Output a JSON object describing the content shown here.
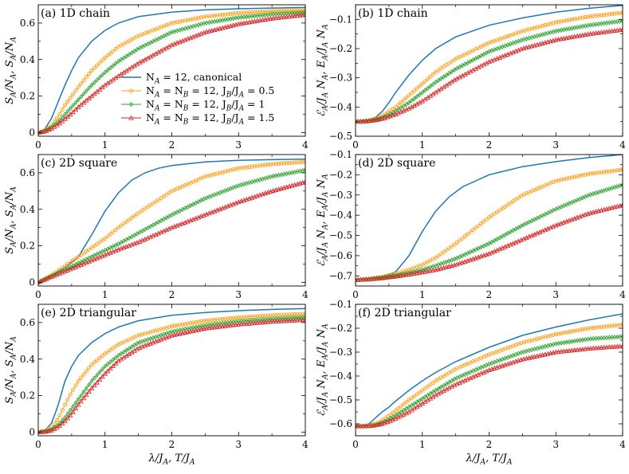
{
  "figure": {
    "xlabel_bottom": "λ/J_A, T/J_A"
  },
  "legend": [
    {
      "label": "N_A = 12, canonical",
      "color": "#1f77b4",
      "marker": "none"
    },
    {
      "label": "N_A = N_B = 12, J_B/J_A = 0.5",
      "color": "#ff9f1a",
      "marker": "circle"
    },
    {
      "label": "N_A = N_B = 12, J_B/J_A = 1",
      "color": "#2ca02c",
      "marker": "diamond"
    },
    {
      "label": "N_A = N_B = 12, J_B/J_A = 1.5",
      "color": "#d62728",
      "marker": "triangle"
    }
  ],
  "chart_data": [
    {
      "type": "line",
      "panel_label": "(a) 1D chain",
      "ylabel": "S_A/N_A, S_A/N_A",
      "xlim": [
        0,
        4
      ],
      "ylim": [
        -0.02,
        0.7
      ],
      "xticks": [
        0,
        1,
        2,
        3,
        4
      ],
      "yticks": [
        0.0,
        0.2,
        0.4,
        0.6
      ],
      "series": [
        {
          "x": [
            0,
            0.1,
            0.2,
            0.3,
            0.4,
            0.5,
            0.6,
            0.8,
            1.0,
            1.2,
            1.5,
            2.0,
            2.5,
            3.0,
            3.5,
            4.0
          ],
          "y": [
            0,
            0.02,
            0.08,
            0.17,
            0.26,
            0.34,
            0.41,
            0.5,
            0.56,
            0.6,
            0.635,
            0.66,
            0.672,
            0.678,
            0.682,
            0.685
          ]
        },
        {
          "x": [
            0,
            0.1,
            0.2,
            0.3,
            0.4,
            0.5,
            0.6,
            0.8,
            1.0,
            1.2,
            1.5,
            2.0,
            2.5,
            3.0,
            3.5,
            4.0
          ],
          "y": [
            0,
            0.01,
            0.04,
            0.09,
            0.15,
            0.2,
            0.25,
            0.34,
            0.41,
            0.47,
            0.53,
            0.6,
            0.635,
            0.655,
            0.665,
            0.672
          ]
        },
        {
          "x": [
            0,
            0.1,
            0.2,
            0.3,
            0.4,
            0.5,
            0.6,
            0.8,
            1.0,
            1.2,
            1.5,
            2.0,
            2.5,
            3.0,
            3.5,
            4.0
          ],
          "y": [
            0,
            0.008,
            0.03,
            0.06,
            0.1,
            0.14,
            0.18,
            0.26,
            0.33,
            0.39,
            0.46,
            0.55,
            0.6,
            0.63,
            0.648,
            0.658
          ]
        },
        {
          "x": [
            0,
            0.1,
            0.2,
            0.3,
            0.4,
            0.5,
            0.6,
            0.8,
            1.0,
            1.2,
            1.5,
            2.0,
            2.5,
            3.0,
            3.5,
            4.0
          ],
          "y": [
            0,
            0.006,
            0.022,
            0.045,
            0.075,
            0.105,
            0.14,
            0.2,
            0.26,
            0.31,
            0.38,
            0.48,
            0.55,
            0.595,
            0.625,
            0.645
          ]
        }
      ]
    },
    {
      "type": "line",
      "panel_label": "(b) 1D chain",
      "ylabel": "ℰ_A/J_A N_A, E_A/J_A N_A",
      "xlim": [
        0,
        4
      ],
      "ylim": [
        -0.5,
        -0.05
      ],
      "xticks": [
        0,
        1,
        2,
        3,
        4
      ],
      "yticks": [
        -0.5,
        -0.4,
        -0.3,
        -0.2,
        -0.1
      ],
      "series": [
        {
          "x": [
            0,
            0.1,
            0.2,
            0.3,
            0.4,
            0.5,
            0.6,
            0.8,
            1.0,
            1.2,
            1.5,
            2.0,
            2.5,
            3.0,
            3.5,
            4.0
          ],
          "y": [
            -0.45,
            -0.449,
            -0.445,
            -0.435,
            -0.415,
            -0.385,
            -0.35,
            -0.29,
            -0.24,
            -0.2,
            -0.16,
            -0.12,
            -0.095,
            -0.075,
            -0.062,
            -0.052
          ]
        },
        {
          "x": [
            0,
            0.1,
            0.2,
            0.3,
            0.4,
            0.5,
            0.6,
            0.8,
            1.0,
            1.2,
            1.5,
            2.0,
            2.5,
            3.0,
            3.5,
            4.0
          ],
          "y": [
            -0.45,
            -0.449,
            -0.446,
            -0.44,
            -0.43,
            -0.415,
            -0.4,
            -0.36,
            -0.32,
            -0.28,
            -0.235,
            -0.18,
            -0.14,
            -0.11,
            -0.09,
            -0.077
          ]
        },
        {
          "x": [
            0,
            0.1,
            0.2,
            0.3,
            0.4,
            0.5,
            0.6,
            0.8,
            1.0,
            1.2,
            1.5,
            2.0,
            2.5,
            3.0,
            3.5,
            4.0
          ],
          "y": [
            -0.45,
            -0.449,
            -0.447,
            -0.443,
            -0.436,
            -0.426,
            -0.414,
            -0.385,
            -0.35,
            -0.315,
            -0.27,
            -0.21,
            -0.17,
            -0.14,
            -0.12,
            -0.105
          ]
        },
        {
          "x": [
            0,
            0.1,
            0.2,
            0.3,
            0.4,
            0.5,
            0.6,
            0.8,
            1.0,
            1.2,
            1.5,
            2.0,
            2.5,
            3.0,
            3.5,
            4.0
          ],
          "y": [
            -0.45,
            -0.45,
            -0.448,
            -0.445,
            -0.44,
            -0.433,
            -0.425,
            -0.405,
            -0.38,
            -0.35,
            -0.305,
            -0.245,
            -0.2,
            -0.17,
            -0.15,
            -0.135
          ]
        }
      ]
    },
    {
      "type": "line",
      "panel_label": "(c) 2D square",
      "ylabel": "S_A/N_A, S_A/N_A",
      "xlim": [
        0,
        4
      ],
      "ylim": [
        -0.02,
        0.7
      ],
      "xticks": [
        0,
        1,
        2,
        3,
        4
      ],
      "yticks": [
        0.0,
        0.2,
        0.4,
        0.6
      ],
      "series": [
        {
          "x": [
            0,
            0.2,
            0.4,
            0.6,
            0.8,
            1.0,
            1.2,
            1.4,
            1.6,
            1.8,
            2.0,
            2.5,
            3.0,
            3.5,
            4.0
          ],
          "y": [
            0,
            0.04,
            0.08,
            0.14,
            0.26,
            0.39,
            0.49,
            0.56,
            0.6,
            0.625,
            0.64,
            0.66,
            0.668,
            0.672,
            0.675
          ]
        },
        {
          "x": [
            0,
            0.2,
            0.4,
            0.6,
            0.8,
            1.0,
            1.2,
            1.5,
            2.0,
            2.5,
            3.0,
            3.5,
            4.0
          ],
          "y": [
            0,
            0.04,
            0.09,
            0.14,
            0.19,
            0.24,
            0.3,
            0.38,
            0.5,
            0.58,
            0.625,
            0.648,
            0.66
          ]
        },
        {
          "x": [
            0,
            0.2,
            0.4,
            0.6,
            0.8,
            1.0,
            1.2,
            1.5,
            2.0,
            2.5,
            3.0,
            3.5,
            4.0
          ],
          "y": [
            0,
            0.035,
            0.07,
            0.105,
            0.14,
            0.175,
            0.21,
            0.27,
            0.37,
            0.46,
            0.53,
            0.58,
            0.615
          ]
        },
        {
          "x": [
            0,
            0.2,
            0.4,
            0.6,
            0.8,
            1.0,
            1.2,
            1.5,
            2.0,
            2.5,
            3.0,
            3.5,
            4.0
          ],
          "y": [
            0,
            0.03,
            0.06,
            0.09,
            0.12,
            0.15,
            0.18,
            0.22,
            0.3,
            0.37,
            0.44,
            0.5,
            0.55
          ]
        }
      ]
    },
    {
      "type": "line",
      "panel_label": "(d) 2D square",
      "ylabel": "ℰ_A/J_A N_A, E_A/J_A N_A",
      "xlim": [
        0,
        4
      ],
      "ylim": [
        -0.75,
        -0.1
      ],
      "xticks": [
        0,
        1,
        2,
        3,
        4
      ],
      "yticks": [
        -0.7,
        -0.6,
        -0.5,
        -0.4,
        -0.3,
        -0.2,
        -0.1
      ],
      "series": [
        {
          "x": [
            0,
            0.2,
            0.4,
            0.6,
            0.8,
            1.0,
            1.2,
            1.4,
            1.6,
            2.0,
            2.5,
            3.0,
            3.5,
            4.0
          ],
          "y": [
            -0.72,
            -0.715,
            -0.705,
            -0.68,
            -0.6,
            -0.48,
            -0.38,
            -0.31,
            -0.26,
            -0.2,
            -0.16,
            -0.135,
            -0.115,
            -0.1
          ]
        },
        {
          "x": [
            0,
            0.2,
            0.4,
            0.6,
            0.8,
            1.0,
            1.2,
            1.5,
            2.0,
            2.5,
            3.0,
            3.5,
            4.0
          ],
          "y": [
            -0.72,
            -0.715,
            -0.705,
            -0.69,
            -0.67,
            -0.645,
            -0.61,
            -0.54,
            -0.41,
            -0.3,
            -0.23,
            -0.195,
            -0.175
          ]
        },
        {
          "x": [
            0,
            0.2,
            0.4,
            0.6,
            0.8,
            1.0,
            1.2,
            1.5,
            2.0,
            2.5,
            3.0,
            3.5,
            4.0
          ],
          "y": [
            -0.72,
            -0.716,
            -0.708,
            -0.698,
            -0.685,
            -0.67,
            -0.65,
            -0.615,
            -0.54,
            -0.45,
            -0.37,
            -0.3,
            -0.25
          ]
        },
        {
          "x": [
            0,
            0.2,
            0.4,
            0.6,
            0.8,
            1.0,
            1.2,
            1.5,
            2.0,
            2.5,
            3.0,
            3.5,
            4.0
          ],
          "y": [
            -0.72,
            -0.717,
            -0.711,
            -0.703,
            -0.693,
            -0.682,
            -0.67,
            -0.645,
            -0.59,
            -0.52,
            -0.45,
            -0.39,
            -0.35
          ]
        }
      ]
    },
    {
      "type": "line",
      "panel_label": "(e) 2D triangular",
      "ylabel": "S_A/N_A, S_A/N_A",
      "xlim": [
        0,
        4
      ],
      "ylim": [
        -0.02,
        0.7
      ],
      "xticks": [
        0,
        1,
        2,
        3,
        4
      ],
      "yticks": [
        0.0,
        0.2,
        0.4,
        0.6
      ],
      "series": [
        {
          "x": [
            0,
            0.1,
            0.2,
            0.3,
            0.4,
            0.5,
            0.6,
            0.8,
            1.0,
            1.2,
            1.5,
            2.0,
            2.5,
            3.0,
            3.5,
            4.0
          ],
          "y": [
            0,
            0.01,
            0.05,
            0.15,
            0.28,
            0.36,
            0.42,
            0.49,
            0.54,
            0.575,
            0.61,
            0.64,
            0.655,
            0.665,
            0.672,
            0.677
          ]
        },
        {
          "x": [
            0,
            0.1,
            0.2,
            0.3,
            0.4,
            0.5,
            0.6,
            0.8,
            1.0,
            1.2,
            1.5,
            2.0,
            2.5,
            3.0,
            3.5,
            4.0
          ],
          "y": [
            0,
            0.005,
            0.025,
            0.075,
            0.15,
            0.22,
            0.28,
            0.37,
            0.43,
            0.48,
            0.53,
            0.58,
            0.61,
            0.628,
            0.64,
            0.648
          ]
        },
        {
          "x": [
            0,
            0.1,
            0.2,
            0.3,
            0.4,
            0.5,
            0.6,
            0.8,
            1.0,
            1.2,
            1.5,
            2.0,
            2.5,
            3.0,
            3.5,
            4.0
          ],
          "y": [
            0,
            0.003,
            0.015,
            0.04,
            0.08,
            0.13,
            0.18,
            0.28,
            0.36,
            0.42,
            0.49,
            0.55,
            0.585,
            0.607,
            0.62,
            0.63
          ]
        },
        {
          "x": [
            0,
            0.1,
            0.2,
            0.3,
            0.4,
            0.5,
            0.6,
            0.8,
            1.0,
            1.2,
            1.5,
            2.0,
            2.5,
            3.0,
            3.5,
            4.0
          ],
          "y": [
            0,
            0.002,
            0.01,
            0.028,
            0.06,
            0.1,
            0.15,
            0.24,
            0.32,
            0.39,
            0.46,
            0.53,
            0.568,
            0.59,
            0.605,
            0.615
          ]
        }
      ]
    },
    {
      "type": "line",
      "panel_label": "(f) 2D triangular",
      "ylabel": "ℰ_A/J_A N_A, E_A/J_A N_A",
      "xlim": [
        0,
        4
      ],
      "ylim": [
        -0.65,
        -0.1
      ],
      "xticks": [
        0,
        1,
        2,
        3,
        4
      ],
      "yticks": [
        -0.6,
        -0.5,
        -0.4,
        -0.3,
        -0.2,
        -0.1
      ],
      "series": [
        {
          "x": [
            0,
            0.1,
            0.2,
            0.3,
            0.4,
            0.5,
            0.6,
            0.8,
            1.0,
            1.2,
            1.5,
            2.0,
            2.5,
            3.0,
            3.5,
            4.0
          ],
          "y": [
            -0.61,
            -0.61,
            -0.6,
            -0.575,
            -0.55,
            -0.53,
            -0.505,
            -0.46,
            -0.42,
            -0.385,
            -0.34,
            -0.28,
            -0.23,
            -0.195,
            -0.165,
            -0.14
          ]
        },
        {
          "x": [
            0,
            0.1,
            0.2,
            0.3,
            0.4,
            0.5,
            0.6,
            0.8,
            1.0,
            1.2,
            1.5,
            2.0,
            2.5,
            3.0,
            3.5,
            4.0
          ],
          "y": [
            -0.61,
            -0.61,
            -0.608,
            -0.6,
            -0.585,
            -0.565,
            -0.545,
            -0.5,
            -0.46,
            -0.42,
            -0.37,
            -0.31,
            -0.26,
            -0.225,
            -0.2,
            -0.185
          ]
        },
        {
          "x": [
            0,
            0.1,
            0.2,
            0.3,
            0.4,
            0.5,
            0.6,
            0.8,
            1.0,
            1.2,
            1.5,
            2.0,
            2.5,
            3.0,
            3.5,
            4.0
          ],
          "y": [
            -0.61,
            -0.61,
            -0.609,
            -0.605,
            -0.595,
            -0.58,
            -0.565,
            -0.53,
            -0.495,
            -0.46,
            -0.41,
            -0.35,
            -0.3,
            -0.265,
            -0.245,
            -0.235
          ]
        },
        {
          "x": [
            0,
            0.1,
            0.2,
            0.3,
            0.4,
            0.5,
            0.6,
            0.8,
            1.0,
            1.2,
            1.5,
            2.0,
            2.5,
            3.0,
            3.5,
            4.0
          ],
          "y": [
            -0.61,
            -0.61,
            -0.609,
            -0.606,
            -0.6,
            -0.59,
            -0.578,
            -0.55,
            -0.515,
            -0.48,
            -0.435,
            -0.375,
            -0.33,
            -0.3,
            -0.285,
            -0.275
          ]
        }
      ]
    }
  ]
}
